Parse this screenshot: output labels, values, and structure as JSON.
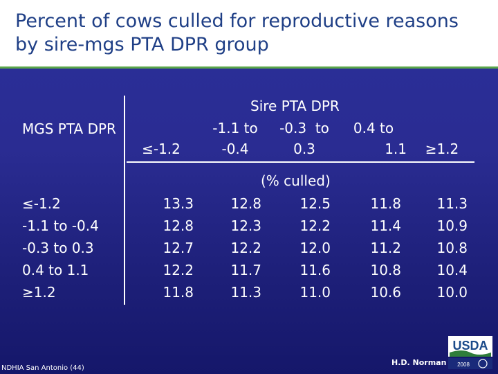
{
  "title": "Percent of cows culled for reproductive reasons by sire-mgs PTA DPR group",
  "table": {
    "row_header": "MGS PTA DPR",
    "col_group_header": "Sire PTA DPR",
    "units_label": "(% culled)",
    "col_headers": [
      [
        "≤-1.2",
        ""
      ],
      [
        "-1.1 to",
        "-0.4"
      ],
      [
        "-0.3  to",
        "0.3"
      ],
      [
        "0.4 to",
        "1.1"
      ],
      [
        "≥1.2",
        ""
      ]
    ],
    "rows": [
      {
        "label": "≤-1.2",
        "values": [
          "13.3",
          "12.8",
          "12.5",
          "11.8",
          "11.3"
        ]
      },
      {
        "label": "-1.1 to -0.4",
        "values": [
          "12.8",
          "12.3",
          "12.2",
          "11.4",
          "10.9"
        ]
      },
      {
        "label": "-0.3 to 0.3",
        "values": [
          "12.7",
          "12.2",
          "12.0",
          "11.2",
          "10.8"
        ]
      },
      {
        "label": "0.4 to 1.1",
        "values": [
          "12.2",
          "11.7",
          "11.6",
          "10.8",
          "10.4"
        ]
      },
      {
        "label": "≥1.2",
        "values": [
          "11.8",
          "11.3",
          "11.0",
          "10.6",
          "10.0"
        ]
      }
    ]
  },
  "footer": {
    "left": "NDHIA San Antonio (44)",
    "right": "H.D. Norman"
  },
  "logo": {
    "text": "USDA",
    "year": "2008",
    "colors": {
      "green": "#2f7d3a",
      "blue": "#1a4a8a",
      "white": "#ffffff"
    }
  }
}
